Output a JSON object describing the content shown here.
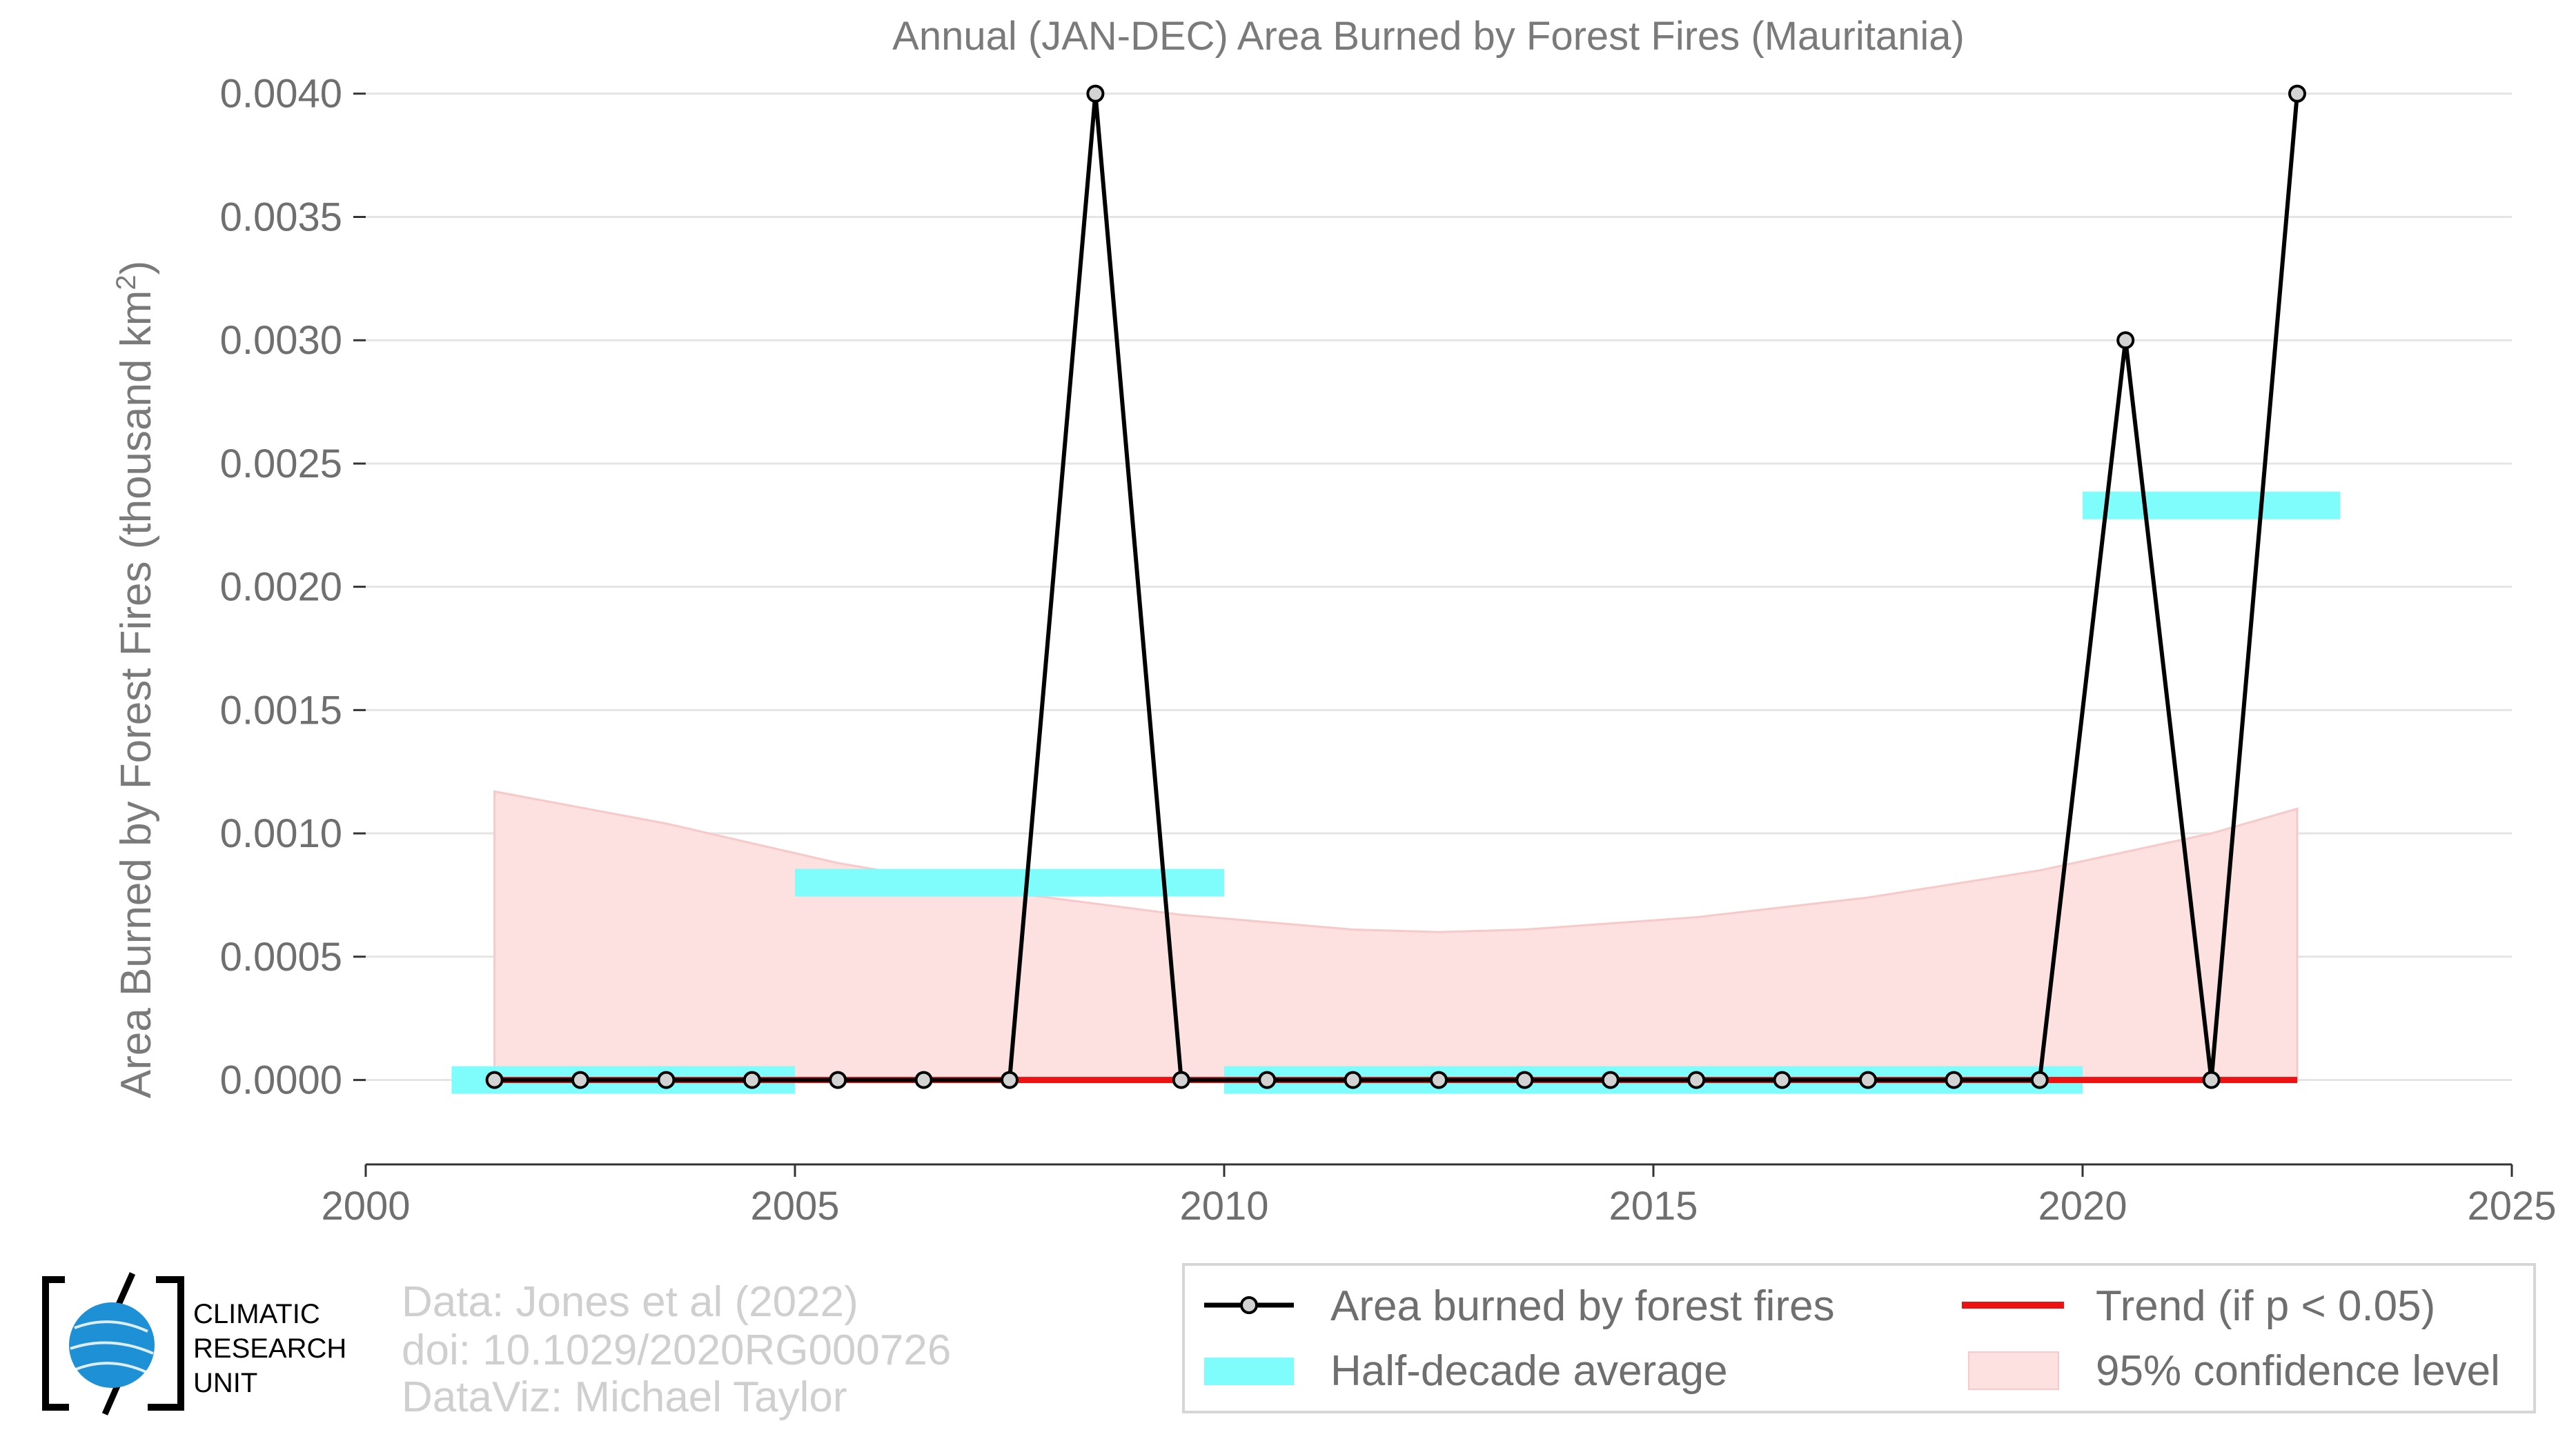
{
  "chart_data": {
    "type": "line",
    "title": "Annual (JAN-DEC) Area Burned by Forest Fires (Mauritania)",
    "ylabel_main": "Area Burned by Forest Fires (thousand km",
    "ylabel_sup": "2",
    "ylabel_end": ")",
    "xlim": [
      2000,
      2025
    ],
    "ylim": [
      -0.00032,
      0.0041
    ],
    "xticks": [
      2000,
      2005,
      2010,
      2015,
      2020,
      2025
    ],
    "yticks": [
      0.0,
      0.0005,
      0.001,
      0.0015,
      0.002,
      0.0025,
      0.003,
      0.0035,
      0.004
    ],
    "ytick_labels": [
      "0.0000",
      "0.0005",
      "0.0010",
      "0.0015",
      "0.0020",
      "0.0025",
      "0.0030",
      "0.0035",
      "0.0040"
    ],
    "grid": true,
    "series": [
      {
        "name": "Area burned by forest fires",
        "color": "#000000",
        "x": [
          2001.5,
          2002.5,
          2003.5,
          2004.5,
          2005.5,
          2006.5,
          2007.5,
          2008.5,
          2009.5,
          2010.5,
          2011.5,
          2012.5,
          2013.5,
          2014.5,
          2015.5,
          2016.5,
          2017.5,
          2018.5,
          2019.5,
          2020.5,
          2021.5,
          2022.5
        ],
        "y": [
          0,
          0,
          0,
          0,
          0,
          0,
          0,
          0.004,
          0,
          0,
          0,
          0,
          0,
          0,
          0,
          0,
          0,
          0,
          0,
          0.003,
          0,
          0.004
        ]
      }
    ],
    "half_decade_average": {
      "name": "Half-decade average",
      "color": "#7ffcfc",
      "segments": [
        {
          "x0": 2001,
          "x1": 2005,
          "y": 0.0
        },
        {
          "x0": 2005,
          "x1": 2010,
          "y": 0.0008
        },
        {
          "x0": 2010,
          "x1": 2020,
          "y": 0.0
        },
        {
          "x0": 2020,
          "x1": 2023,
          "y": 0.00233
        }
      ]
    },
    "trend": {
      "name": "Trend (if p < 0.05)",
      "color": "#ee1111",
      "x": [
        2001.5,
        2022.5
      ],
      "y": [
        0,
        0
      ]
    },
    "confidence_band": {
      "name": "95% confidence level",
      "color": "#fde0e0",
      "x": [
        2001.5,
        2003.5,
        2005.5,
        2007.5,
        2009.5,
        2011.5,
        2012.5,
        2013.5,
        2015.5,
        2017.5,
        2019.5,
        2021.5,
        2022.5
      ],
      "upper": [
        0.00117,
        0.00104,
        0.00088,
        0.00076,
        0.00067,
        0.00061,
        0.0006,
        0.00061,
        0.00066,
        0.00074,
        0.00085,
        0.001,
        0.0011
      ],
      "lower": [
        0,
        0,
        0,
        0,
        0,
        0,
        0,
        0,
        0,
        0,
        0,
        0,
        0
      ]
    }
  },
  "credits": {
    "line1": "Data: Jones et al (2022)",
    "line2": "doi: 10.1029/2020RG000726",
    "line3": "DataViz: Michael Taylor"
  },
  "logo": {
    "line1": "CLIMATIC",
    "line2": "RESEARCH",
    "line3": "UNIT"
  },
  "legend": {
    "item_line": "Area burned by forest fires",
    "item_trend": "Trend (if p < 0.05)",
    "item_avg": "Half-decade average",
    "item_ci": "95% confidence level"
  }
}
